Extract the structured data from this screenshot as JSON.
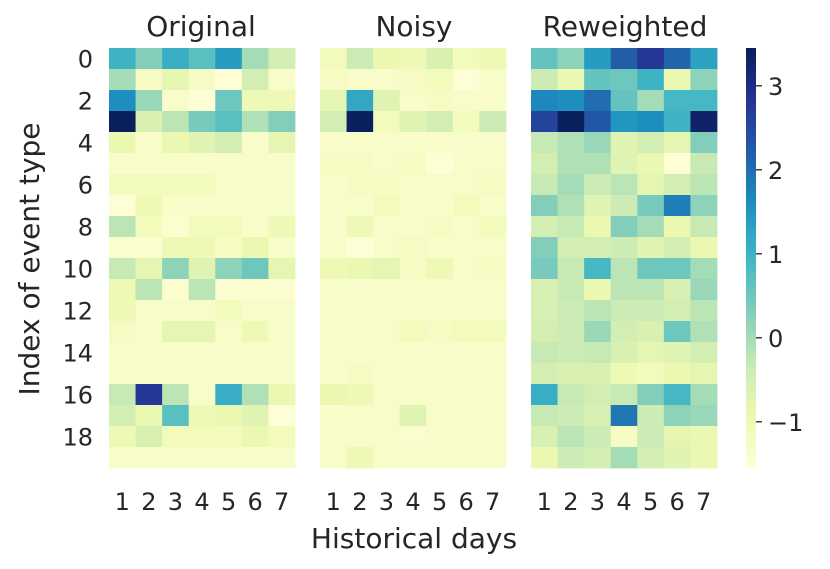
{
  "chart_data": {
    "type": "heatmap",
    "xlabel": "Historical days",
    "ylabel": "Index of event type",
    "x_categories": [
      1,
      2,
      3,
      4,
      5,
      6,
      7
    ],
    "y_tick_labels": [
      0,
      2,
      4,
      6,
      8,
      10,
      12,
      14,
      16,
      18
    ],
    "y_count": 20,
    "colorscale": "YlGnBu",
    "color_range": [
      -1.55,
      3.45
    ],
    "colorbar_ticks": [
      -1,
      0,
      1,
      2,
      3
    ],
    "colorbar_tick_labels": [
      "−1",
      "0",
      "1",
      "2",
      "3"
    ],
    "grid": false,
    "panels": [
      {
        "title": "Original",
        "values": [
          [
            1.0,
            0.3,
            1.1,
            0.7,
            1.4,
            0.0,
            -0.5
          ],
          [
            0.0,
            -1.2,
            -0.8,
            -1.2,
            -1.5,
            -0.5,
            -1.3
          ],
          [
            1.6,
            0.1,
            -1.3,
            -1.5,
            0.5,
            -1.0,
            -1.0
          ],
          [
            3.4,
            -0.6,
            -0.2,
            0.4,
            0.7,
            -0.1,
            0.3
          ],
          [
            -0.9,
            -1.3,
            -0.9,
            -0.7,
            -0.5,
            -1.3,
            -0.8
          ],
          [
            -1.3,
            -1.3,
            -1.3,
            -1.3,
            -1.3,
            -1.3,
            -1.3
          ],
          [
            -1.1,
            -1.1,
            -1.1,
            -1.1,
            -1.3,
            -1.3,
            -1.3
          ],
          [
            -1.5,
            -1.0,
            -1.3,
            -1.3,
            -1.3,
            -1.3,
            -1.3
          ],
          [
            -0.2,
            -1.1,
            -1.4,
            -1.1,
            -1.1,
            -1.3,
            -1.0
          ],
          [
            -1.4,
            -1.4,
            -1.0,
            -1.0,
            -1.2,
            -0.9,
            -1.3
          ],
          [
            -0.3,
            -0.8,
            0.2,
            -0.7,
            0.2,
            0.5,
            -0.8
          ],
          [
            -1.0,
            -0.2,
            -1.4,
            -0.2,
            -1.4,
            -1.4,
            -1.4
          ],
          [
            -1.0,
            -1.3,
            -1.3,
            -1.3,
            -1.1,
            -1.3,
            -1.3
          ],
          [
            -1.2,
            -1.3,
            -0.8,
            -0.8,
            -1.3,
            -1.0,
            -1.3
          ],
          [
            -1.3,
            -1.3,
            -1.3,
            -1.3,
            -1.3,
            -1.3,
            -1.3
          ],
          [
            -1.3,
            -1.3,
            -1.3,
            -1.3,
            -1.3,
            -1.3,
            -1.3
          ],
          [
            -0.3,
            2.8,
            -0.2,
            -1.3,
            1.1,
            -0.1,
            -0.9
          ],
          [
            -0.5,
            -0.9,
            0.7,
            -1.0,
            -0.9,
            -0.7,
            -1.5
          ],
          [
            -1.0,
            -0.6,
            -1.1,
            -1.1,
            -1.1,
            -0.9,
            -1.1
          ],
          [
            -1.3,
            -1.3,
            -1.3,
            -1.3,
            -1.3,
            -1.3,
            -1.3
          ]
        ]
      },
      {
        "title": "Noisy",
        "values": [
          [
            -1.1,
            -0.4,
            -0.9,
            -1.0,
            -0.6,
            -1.1,
            -1.0
          ],
          [
            -1.2,
            -1.3,
            -1.3,
            -1.2,
            -1.1,
            -1.5,
            -1.3
          ],
          [
            -0.8,
            1.2,
            -0.7,
            -1.3,
            -1.2,
            -1.3,
            -1.3
          ],
          [
            -0.5,
            3.4,
            -1.1,
            -0.7,
            -0.5,
            -1.1,
            -0.4
          ],
          [
            -1.3,
            -1.3,
            -1.3,
            -1.3,
            -1.3,
            -1.3,
            -1.3
          ],
          [
            -1.2,
            -1.2,
            -1.3,
            -1.2,
            -1.5,
            -1.3,
            -1.3
          ],
          [
            -1.3,
            -1.2,
            -1.2,
            -1.3,
            -1.3,
            -1.3,
            -1.2
          ],
          [
            -1.3,
            -1.3,
            -1.1,
            -1.3,
            -1.3,
            -1.1,
            -1.3
          ],
          [
            -1.3,
            -1.0,
            -1.3,
            -1.3,
            -1.2,
            -1.3,
            -1.1
          ],
          [
            -1.3,
            -1.5,
            -1.3,
            -1.2,
            -1.3,
            -1.3,
            -1.3
          ],
          [
            -1.0,
            -0.9,
            -0.8,
            -1.2,
            -1.0,
            -1.3,
            -1.2
          ],
          [
            -1.3,
            -1.3,
            -1.3,
            -1.3,
            -1.3,
            -1.3,
            -1.3
          ],
          [
            -1.3,
            -1.3,
            -1.3,
            -1.3,
            -1.3,
            -1.3,
            -1.3
          ],
          [
            -1.3,
            -1.3,
            -1.3,
            -1.1,
            -1.2,
            -1.1,
            -1.1
          ],
          [
            -1.3,
            -1.3,
            -1.3,
            -1.3,
            -1.3,
            -1.3,
            -1.3
          ],
          [
            -1.3,
            -1.2,
            -1.3,
            -1.3,
            -1.3,
            -1.3,
            -1.3
          ],
          [
            -0.9,
            -1.0,
            -1.3,
            -1.3,
            -1.3,
            -1.3,
            -1.3
          ],
          [
            -1.3,
            -1.3,
            -1.3,
            -0.7,
            -1.3,
            -1.3,
            -1.3
          ],
          [
            -1.3,
            -1.3,
            -1.3,
            -1.4,
            -1.3,
            -1.3,
            -1.3
          ],
          [
            -1.3,
            -1.0,
            -1.3,
            -1.3,
            -1.3,
            -1.3,
            -1.3
          ]
        ]
      },
      {
        "title": "Reweighted",
        "values": [
          [
            0.6,
            0.2,
            1.4,
            2.2,
            2.8,
            2.1,
            1.3
          ],
          [
            -0.4,
            -0.9,
            0.6,
            0.5,
            1.0,
            -0.9,
            0.2
          ],
          [
            1.7,
            1.6,
            2.0,
            0.6,
            0.0,
            0.9,
            0.9
          ],
          [
            2.6,
            3.4,
            2.3,
            1.5,
            1.6,
            1.0,
            3.3
          ],
          [
            -0.3,
            -0.1,
            0.1,
            -0.7,
            -0.5,
            -0.8,
            0.3
          ],
          [
            -0.5,
            -0.1,
            -0.1,
            -0.7,
            -0.9,
            -1.5,
            -0.3
          ],
          [
            -0.3,
            0.0,
            -0.4,
            -0.2,
            -0.8,
            -0.5,
            -0.2
          ],
          [
            0.3,
            -0.1,
            -0.7,
            -0.4,
            0.4,
            1.8,
            0.2
          ],
          [
            -0.5,
            -0.3,
            -0.9,
            0.3,
            0.0,
            -0.9,
            -0.3
          ],
          [
            0.3,
            -0.5,
            -0.5,
            -0.4,
            -0.7,
            -0.5,
            -0.9
          ],
          [
            0.4,
            -0.3,
            0.9,
            -0.2,
            0.5,
            0.5,
            0.0
          ],
          [
            -0.6,
            -0.3,
            -0.9,
            -0.2,
            -0.2,
            -0.6,
            0.1
          ],
          [
            -0.6,
            -0.4,
            -0.2,
            -0.4,
            -0.4,
            -0.5,
            -0.2
          ],
          [
            -0.5,
            -0.4,
            0.1,
            -0.5,
            -0.6,
            0.5,
            -0.1
          ],
          [
            -0.3,
            -0.4,
            -0.3,
            -0.6,
            -0.8,
            -0.7,
            -0.5
          ],
          [
            -0.5,
            -0.6,
            -0.6,
            -1.0,
            -1.1,
            -0.9,
            -0.8
          ],
          [
            1.1,
            -0.3,
            -0.5,
            -0.3,
            0.3,
            0.9,
            0.0
          ],
          [
            -0.3,
            -0.4,
            -0.6,
            1.9,
            -0.4,
            0.2,
            0.1
          ],
          [
            -0.6,
            -0.2,
            -0.4,
            -1.2,
            -0.4,
            -0.8,
            -0.9
          ],
          [
            -0.9,
            -0.4,
            -0.5,
            0.0,
            -0.5,
            -0.7,
            -0.9
          ]
        ]
      }
    ]
  }
}
